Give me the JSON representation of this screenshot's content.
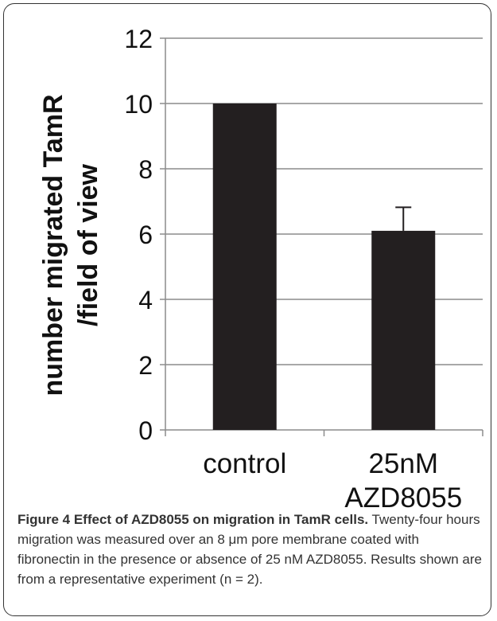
{
  "chart_data": {
    "type": "bar",
    "categories": [
      [
        "control"
      ],
      [
        "25nM",
        "AZD8055"
      ]
    ],
    "values": [
      10.0,
      6.1
    ],
    "error_bars": [
      0,
      0.72
    ],
    "ylabel_lines": [
      "number migrated TamR",
      "/field of view"
    ],
    "ylim": [
      0,
      12
    ],
    "yticks": [
      0,
      2,
      4,
      6,
      8,
      10,
      12
    ],
    "grid": true,
    "bar_color": "#231f20",
    "grid_color": "#8c8c8c"
  },
  "caption": {
    "bold": "Figure 4 Effect of AZD8055 on migration in TamR cells.",
    "text": " Twenty-four hours migration was measured over an 8 μm pore membrane coated with fibronectin in the presence or absence of 25 nM AZD8055. Results shown are from a representative experiment (n = 2)."
  }
}
